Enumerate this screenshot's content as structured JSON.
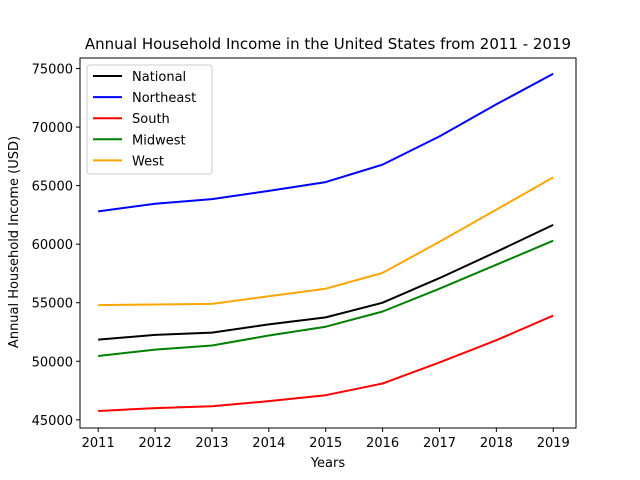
{
  "chart_data": {
    "type": "line",
    "title": "Annual Household Income in the United States from 2011 - 2019",
    "xlabel": "Years",
    "ylabel": "Annual Household Income (USD)",
    "x": [
      2011,
      2012,
      2013,
      2014,
      2015,
      2016,
      2017,
      2018,
      2019
    ],
    "xlim": [
      2010.68,
      2019.4
    ],
    "ylim": [
      44300,
      75900
    ],
    "yticks": [
      45000,
      50000,
      55000,
      60000,
      65000,
      70000,
      75000
    ],
    "grid": false,
    "legend_position": "top-left",
    "series": [
      {
        "name": "National",
        "color": "#000000",
        "values": [
          51850,
          52250,
          52450,
          53150,
          53750,
          55000,
          57100,
          59350,
          61650
        ]
      },
      {
        "name": "Northeast",
        "color": "#0000ff",
        "values": [
          62800,
          63450,
          63850,
          64550,
          65300,
          66800,
          69200,
          71950,
          74550
        ]
      },
      {
        "name": "South",
        "color": "#ff0000",
        "values": [
          45750,
          46000,
          46150,
          46600,
          47100,
          48100,
          49900,
          51800,
          53900
        ]
      },
      {
        "name": "Midwest",
        "color": "#008000",
        "values": [
          50450,
          51000,
          51350,
          52200,
          52950,
          54250,
          56200,
          58250,
          60300
        ]
      },
      {
        "name": "West",
        "color": "#ffa500",
        "values": [
          54800,
          54850,
          54900,
          55550,
          56200,
          57550,
          60200,
          62950,
          65700
        ]
      }
    ]
  }
}
